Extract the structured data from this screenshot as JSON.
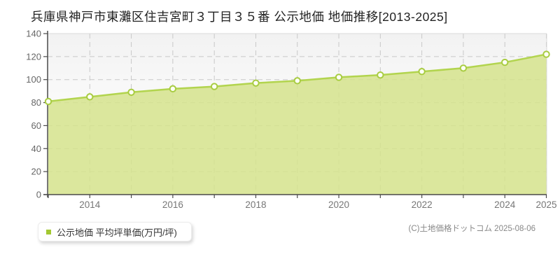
{
  "copyright": "(C)土地価格ドットコム 2025-08-06",
  "chart_data": {
    "type": "area",
    "title": "兵庫県神戸市東灘区住吉宮町３丁目３５番 公示地価 地価推移[2013-2025]",
    "x": [
      2013,
      2014,
      2015,
      2016,
      2017,
      2018,
      2019,
      2020,
      2021,
      2022,
      2023,
      2024,
      2025
    ],
    "series": [
      {
        "name": "公示地価 平均坪単価(万円/坪)",
        "values": [
          81,
          85,
          89,
          92,
          94,
          97,
          99,
          102,
          104,
          107,
          110,
          115,
          122
        ]
      }
    ],
    "xlabel": "",
    "ylabel": "",
    "ylim": [
      0,
      140
    ],
    "ytick_interval": 20,
    "xticks_labeled": [
      2014,
      2016,
      2018,
      2020,
      2022,
      2024,
      2025
    ],
    "grid": true,
    "grid_style": "dashed",
    "legend_position": "bottom-left",
    "unit": "万円/坪",
    "colors": {
      "area_fill": "#d5e38c",
      "line": "#b2d44e",
      "marker_stroke": "#a8cc41",
      "marker_fill": "#fdfff5",
      "legend_marker": "#a3c832",
      "grid": "#c8c8c8",
      "axis": "#4a4a4a",
      "plot_bg_top": "#f2f2f2",
      "plot_bg_bottom": "#ffffff",
      "ytick_label": "#666666",
      "xtick_label": "#777777"
    }
  }
}
